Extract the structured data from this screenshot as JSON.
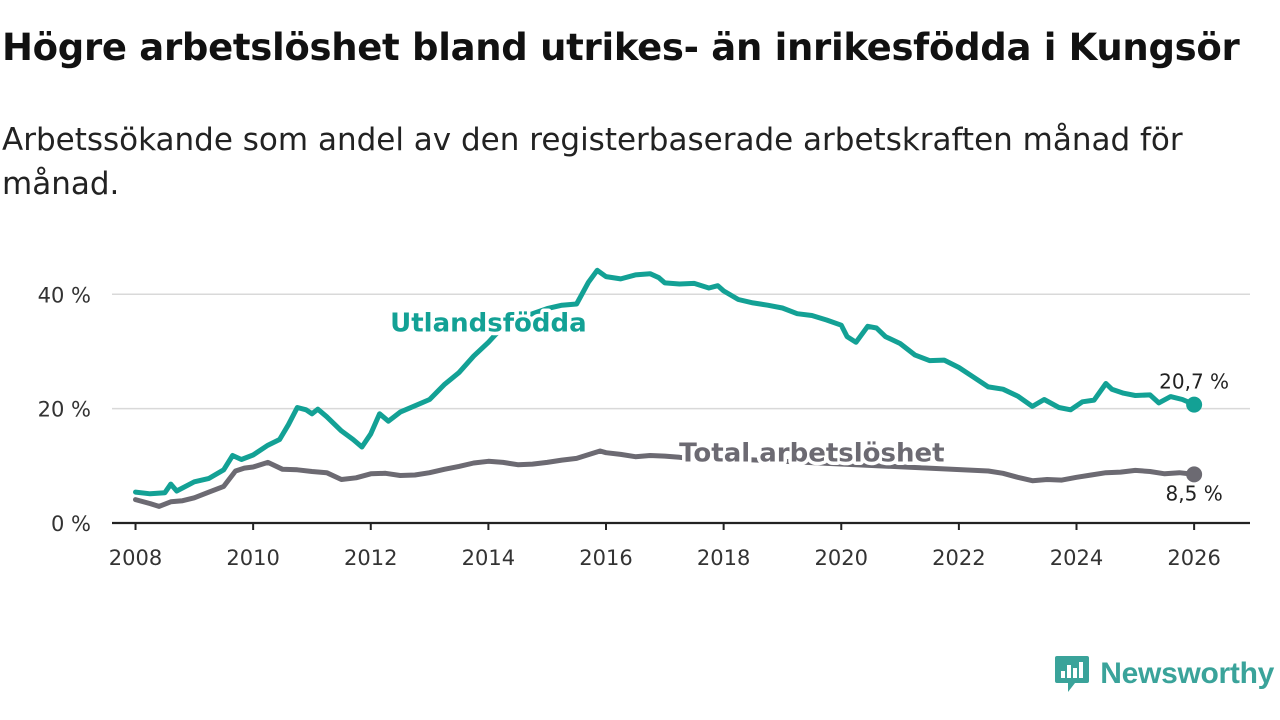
{
  "title": "Högre arbetslöshet bland utrikes- än inrikesfödda i Kungsör",
  "subtitle": "Arbetssökande som andel av den registerbaserade arbetskraften månad för månad.",
  "brand": {
    "name": "Newsworthy",
    "logo_icon": "newsworthy-logo-icon",
    "color": "#3aa39a"
  },
  "chart_data": {
    "type": "line",
    "title": "Högre arbetslöshet bland utrikes- än inrikesfödda i Kungsör",
    "subtitle": "Arbetssökande som andel av den registerbaserade arbetskraften månad för månad.",
    "xlabel": "",
    "ylabel": "",
    "xlim": [
      2007.6,
      2026.95
    ],
    "ylim": [
      0,
      46
    ],
    "x_ticks": [
      2008,
      2010,
      2012,
      2014,
      2016,
      2018,
      2020,
      2022,
      2024,
      2026
    ],
    "x_tick_labels": [
      "2008",
      "2010",
      "2012",
      "2014",
      "2016",
      "2018",
      "2020",
      "2022",
      "2024",
      "2026"
    ],
    "y_ticks": [
      0,
      20,
      40
    ],
    "y_tick_labels": [
      "0 %",
      "20 %",
      "40 %"
    ],
    "grid": true,
    "legend": "inline labels",
    "series": [
      {
        "name": "Utlandsfödda",
        "color": "#13a195",
        "label_at": [
          2014.0,
          33.5
        ],
        "end_label": "20,7 %",
        "points": [
          [
            2008.0,
            5.4
          ],
          [
            2008.25,
            5.1
          ],
          [
            2008.5,
            5.3
          ],
          [
            2008.6,
            6.8
          ],
          [
            2008.7,
            5.6
          ],
          [
            2009.0,
            7.2
          ],
          [
            2009.25,
            7.8
          ],
          [
            2009.5,
            9.3
          ],
          [
            2009.65,
            11.8
          ],
          [
            2009.8,
            11.1
          ],
          [
            2010.0,
            11.9
          ],
          [
            2010.25,
            13.6
          ],
          [
            2010.45,
            14.6
          ],
          [
            2010.6,
            17.2
          ],
          [
            2010.75,
            20.2
          ],
          [
            2010.9,
            19.8
          ],
          [
            2011.0,
            19.1
          ],
          [
            2011.1,
            19.9
          ],
          [
            2011.25,
            18.6
          ],
          [
            2011.5,
            16.1
          ],
          [
            2011.7,
            14.6
          ],
          [
            2011.85,
            13.3
          ],
          [
            2012.0,
            15.6
          ],
          [
            2012.15,
            19.1
          ],
          [
            2012.3,
            17.8
          ],
          [
            2012.5,
            19.4
          ],
          [
            2012.75,
            20.5
          ],
          [
            2013.0,
            21.6
          ],
          [
            2013.25,
            24.2
          ],
          [
            2013.5,
            26.3
          ],
          [
            2013.75,
            29.2
          ],
          [
            2014.0,
            31.6
          ],
          [
            2014.25,
            34.4
          ],
          [
            2014.5,
            35.8
          ],
          [
            2014.75,
            36.6
          ],
          [
            2015.0,
            37.5
          ],
          [
            2015.25,
            38.1
          ],
          [
            2015.5,
            38.3
          ],
          [
            2015.7,
            42.1
          ],
          [
            2015.85,
            44.2
          ],
          [
            2016.0,
            43.1
          ],
          [
            2016.25,
            42.7
          ],
          [
            2016.5,
            43.4
          ],
          [
            2016.75,
            43.6
          ],
          [
            2016.9,
            42.9
          ],
          [
            2017.0,
            42.0
          ],
          [
            2017.25,
            41.8
          ],
          [
            2017.5,
            41.9
          ],
          [
            2017.75,
            41.1
          ],
          [
            2017.9,
            41.5
          ],
          [
            2018.0,
            40.6
          ],
          [
            2018.25,
            39.1
          ],
          [
            2018.5,
            38.5
          ],
          [
            2018.75,
            38.1
          ],
          [
            2019.0,
            37.6
          ],
          [
            2019.25,
            36.6
          ],
          [
            2019.5,
            36.3
          ],
          [
            2019.75,
            35.5
          ],
          [
            2020.0,
            34.6
          ],
          [
            2020.1,
            32.6
          ],
          [
            2020.25,
            31.6
          ],
          [
            2020.45,
            34.4
          ],
          [
            2020.6,
            34.1
          ],
          [
            2020.75,
            32.6
          ],
          [
            2021.0,
            31.4
          ],
          [
            2021.25,
            29.4
          ],
          [
            2021.5,
            28.4
          ],
          [
            2021.75,
            28.5
          ],
          [
            2022.0,
            27.2
          ],
          [
            2022.25,
            25.5
          ],
          [
            2022.5,
            23.8
          ],
          [
            2022.75,
            23.4
          ],
          [
            2023.0,
            22.2
          ],
          [
            2023.25,
            20.4
          ],
          [
            2023.45,
            21.6
          ],
          [
            2023.7,
            20.2
          ],
          [
            2023.9,
            19.8
          ],
          [
            2024.1,
            21.2
          ],
          [
            2024.3,
            21.5
          ],
          [
            2024.5,
            24.4
          ],
          [
            2024.6,
            23.4
          ],
          [
            2024.8,
            22.7
          ],
          [
            2025.0,
            22.3
          ],
          [
            2025.25,
            22.4
          ],
          [
            2025.4,
            21.0
          ],
          [
            2025.6,
            22.1
          ],
          [
            2025.8,
            21.6
          ],
          [
            2026.0,
            20.7
          ]
        ]
      },
      {
        "name": "Total arbetslöshet",
        "color": "#6c6a72",
        "label_at": [
          2019.5,
          10.8
        ],
        "end_label": "8,5 %",
        "points": [
          [
            2008.0,
            4.1
          ],
          [
            2008.25,
            3.4
          ],
          [
            2008.4,
            2.9
          ],
          [
            2008.6,
            3.7
          ],
          [
            2008.8,
            3.9
          ],
          [
            2009.0,
            4.4
          ],
          [
            2009.25,
            5.4
          ],
          [
            2009.5,
            6.4
          ],
          [
            2009.7,
            9.1
          ],
          [
            2009.85,
            9.6
          ],
          [
            2010.0,
            9.8
          ],
          [
            2010.25,
            10.6
          ],
          [
            2010.5,
            9.4
          ],
          [
            2010.75,
            9.3
          ],
          [
            2011.0,
            9.0
          ],
          [
            2011.25,
            8.8
          ],
          [
            2011.5,
            7.6
          ],
          [
            2011.75,
            7.9
          ],
          [
            2012.0,
            8.6
          ],
          [
            2012.25,
            8.7
          ],
          [
            2012.5,
            8.3
          ],
          [
            2012.75,
            8.4
          ],
          [
            2013.0,
            8.8
          ],
          [
            2013.25,
            9.4
          ],
          [
            2013.5,
            9.9
          ],
          [
            2013.75,
            10.5
          ],
          [
            2014.0,
            10.8
          ],
          [
            2014.25,
            10.6
          ],
          [
            2014.5,
            10.2
          ],
          [
            2014.75,
            10.3
          ],
          [
            2015.0,
            10.6
          ],
          [
            2015.25,
            11.0
          ],
          [
            2015.5,
            11.3
          ],
          [
            2015.75,
            12.1
          ],
          [
            2015.9,
            12.6
          ],
          [
            2016.0,
            12.3
          ],
          [
            2016.25,
            12.0
          ],
          [
            2016.5,
            11.6
          ],
          [
            2016.75,
            11.8
          ],
          [
            2017.0,
            11.7
          ],
          [
            2017.25,
            11.5
          ],
          [
            2017.5,
            11.2
          ],
          [
            2017.75,
            11.4
          ],
          [
            2022.5,
            9.1
          ],
          [
            2022.75,
            8.7
          ],
          [
            2023.0,
            8.0
          ],
          [
            2023.25,
            7.4
          ],
          [
            2023.5,
            7.6
          ],
          [
            2023.75,
            7.5
          ],
          [
            2024.0,
            8.0
          ],
          [
            2024.25,
            8.4
          ],
          [
            2024.5,
            8.8
          ],
          [
            2024.75,
            8.9
          ],
          [
            2025.0,
            9.2
          ],
          [
            2025.25,
            9.0
          ],
          [
            2025.5,
            8.6
          ],
          [
            2025.75,
            8.8
          ],
          [
            2026.0,
            8.5
          ]
        ]
      }
    ]
  }
}
